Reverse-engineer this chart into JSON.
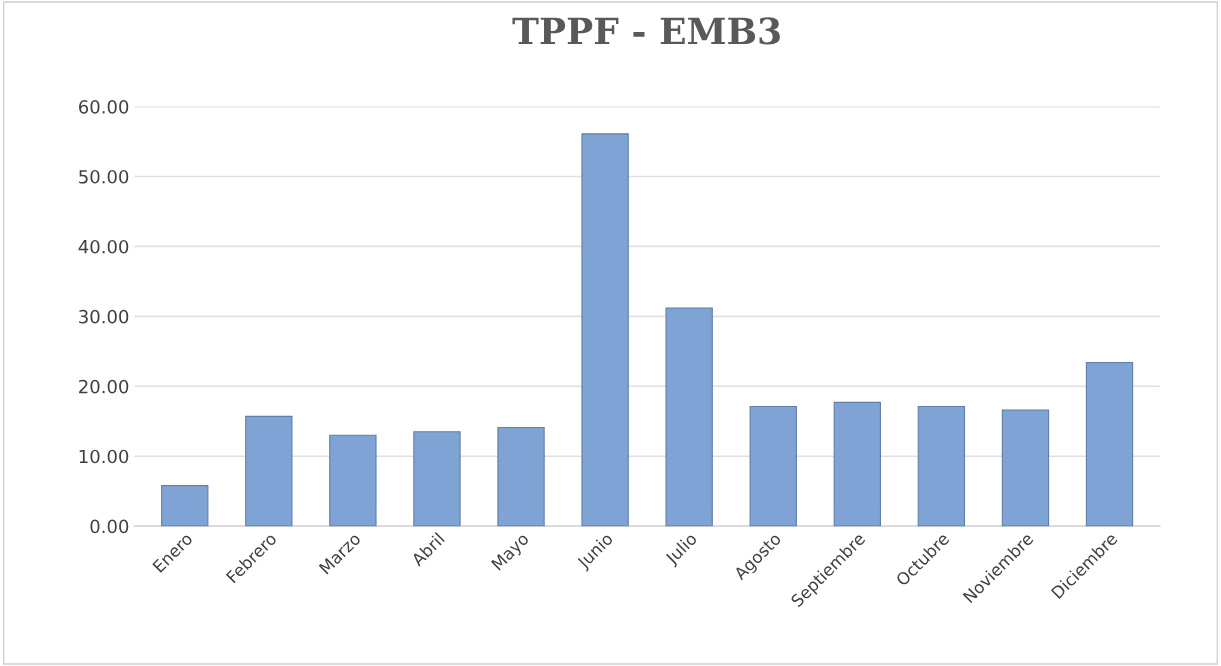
{
  "chart_data": {
    "type": "bar",
    "title": "TPPF - EMB3",
    "categories": [
      "Enero",
      "Febrero",
      "Marzo",
      "Abril",
      "Mayo",
      "Junio",
      "Julio",
      "Agosto",
      "Septiembre",
      "Octubre",
      "Noviembre",
      "Diciembre"
    ],
    "values": [
      5.8,
      15.7,
      13.0,
      13.5,
      14.1,
      56.1,
      31.2,
      17.1,
      17.7,
      17.1,
      16.6,
      23.4
    ],
    "color": "#7fa3d4",
    "ylim": [
      0,
      60
    ],
    "yticks": [
      {
        "value": 0,
        "label": "0.00"
      },
      {
        "value": 10,
        "label": "10.00"
      },
      {
        "value": 20,
        "label": "20.00"
      },
      {
        "value": 30,
        "label": "30.00"
      },
      {
        "value": 40,
        "label": "40.00"
      },
      {
        "value": 50,
        "label": "50.00"
      },
      {
        "value": 60,
        "label": "60.00"
      }
    ],
    "grid": "y",
    "legend": false
  }
}
